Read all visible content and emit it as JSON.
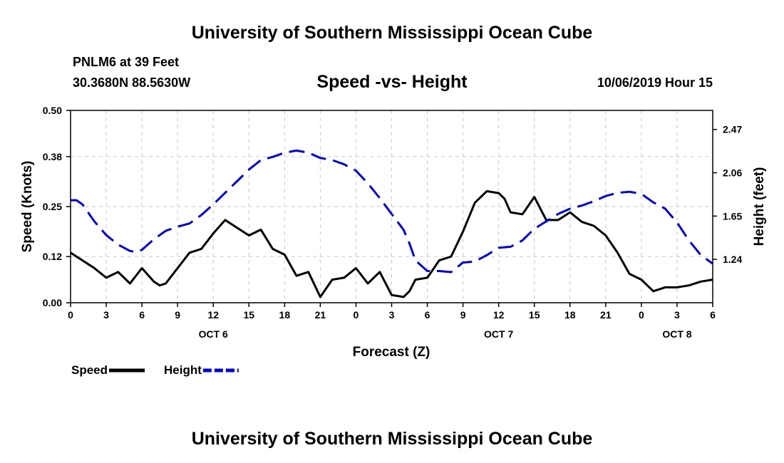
{
  "header": {
    "title": "University of Southern Mississippi Ocean Cube",
    "station": "PNLM6 at 39 Feet",
    "coords": "30.3680N 88.5630W",
    "subtitle": "Speed -vs- Height",
    "datetime": "10/06/2019 Hour 15"
  },
  "footer": {
    "title": "University of Southern Mississippi Ocean Cube"
  },
  "chart_data": {
    "type": "line",
    "xlabel": "Forecast (Z)",
    "ylabel_left": "Speed (Knots)",
    "ylabel_right": "Height (feet)",
    "x_range_hours": [
      0,
      54
    ],
    "x_ticks": [
      0,
      3,
      6,
      9,
      12,
      15,
      18,
      21,
      24,
      27,
      30,
      33,
      36,
      39,
      42,
      45,
      48,
      51,
      54
    ],
    "x_tick_labels": [
      "0",
      "3",
      "6",
      "9",
      "12",
      "15",
      "18",
      "21",
      "0",
      "3",
      "6",
      "9",
      "12",
      "15",
      "18",
      "21",
      "0",
      "3",
      "6"
    ],
    "day_labels": [
      {
        "text": "OCT 6",
        "hour": 12
      },
      {
        "text": "OCT 7",
        "hour": 36
      },
      {
        "text": "OCT 8",
        "hour": 51
      }
    ],
    "y_left": {
      "min": 0,
      "max": 0.5,
      "ticks": [
        0,
        0.12,
        0.25,
        0.38,
        0.5
      ],
      "tick_labels": [
        "0.00",
        "0.12",
        "0.25",
        "0.38",
        "0.50"
      ]
    },
    "y_right": {
      "min": 0.83,
      "max": 2.65,
      "ticks": [
        1.24,
        1.65,
        2.06,
        2.47
      ],
      "tick_labels": [
        "1.24",
        "1.65",
        "2.06",
        "2.47"
      ]
    },
    "grid": true,
    "series": [
      {
        "name": "Speed",
        "axis": "left",
        "color": "#000000",
        "dash": "solid",
        "x": [
          0,
          1,
          2,
          3,
          4,
          5,
          6,
          7,
          7.5,
          8,
          9,
          10,
          11,
          12,
          13,
          14,
          15,
          16,
          17,
          18,
          19,
          20,
          21,
          22,
          23,
          24,
          25,
          26,
          27,
          28,
          28.5,
          29,
          30,
          31,
          32,
          33,
          34,
          35,
          36,
          36.5,
          37,
          38,
          39,
          40,
          41,
          42,
          43,
          44,
          45,
          46,
          47,
          48,
          49,
          50,
          51,
          52,
          53,
          54
        ],
        "values": [
          0.13,
          0.11,
          0.09,
          0.065,
          0.08,
          0.05,
          0.09,
          0.055,
          0.045,
          0.05,
          0.09,
          0.13,
          0.14,
          0.18,
          0.215,
          0.195,
          0.175,
          0.19,
          0.14,
          0.125,
          0.07,
          0.08,
          0.015,
          0.06,
          0.065,
          0.09,
          0.05,
          0.08,
          0.02,
          0.015,
          0.03,
          0.06,
          0.065,
          0.11,
          0.12,
          0.185,
          0.26,
          0.29,
          0.285,
          0.27,
          0.235,
          0.23,
          0.275,
          0.215,
          0.215,
          0.235,
          0.21,
          0.2,
          0.175,
          0.13,
          0.075,
          0.06,
          0.03,
          0.04,
          0.04,
          0.045,
          0.055,
          0.06
        ]
      },
      {
        "name": "Height",
        "axis": "right",
        "color": "#0000cc",
        "dash": "dashed",
        "x": [
          0,
          0.5,
          1,
          2,
          3,
          4,
          5,
          5.5,
          6,
          7,
          8,
          9,
          10,
          11,
          12,
          13,
          14,
          15,
          16,
          17,
          18,
          19,
          20,
          21,
          22,
          23,
          24,
          25,
          26,
          27,
          28,
          28.5,
          29,
          30,
          31,
          32,
          33,
          34,
          35,
          36,
          37,
          38,
          39,
          40,
          41,
          42,
          43,
          44,
          45,
          46,
          47,
          48,
          49,
          50,
          51,
          52,
          53,
          54
        ],
        "values": [
          1.8,
          1.8,
          1.76,
          1.6,
          1.47,
          1.38,
          1.32,
          1.31,
          1.33,
          1.43,
          1.51,
          1.55,
          1.58,
          1.66,
          1.76,
          1.87,
          1.98,
          2.09,
          2.18,
          2.21,
          2.25,
          2.27,
          2.25,
          2.2,
          2.18,
          2.14,
          2.08,
          1.96,
          1.82,
          1.67,
          1.52,
          1.39,
          1.23,
          1.13,
          1.13,
          1.12,
          1.21,
          1.22,
          1.28,
          1.35,
          1.36,
          1.42,
          1.53,
          1.6,
          1.67,
          1.72,
          1.75,
          1.79,
          1.84,
          1.87,
          1.88,
          1.86,
          1.78,
          1.72,
          1.59,
          1.42,
          1.28,
          1.2
        ]
      }
    ],
    "legend": [
      {
        "label": "Speed",
        "color": "#000000",
        "dash": "solid"
      },
      {
        "label": "Height",
        "color": "#0000cc",
        "dash": "dashed"
      }
    ],
    "legend_position": "bottom-left"
  }
}
